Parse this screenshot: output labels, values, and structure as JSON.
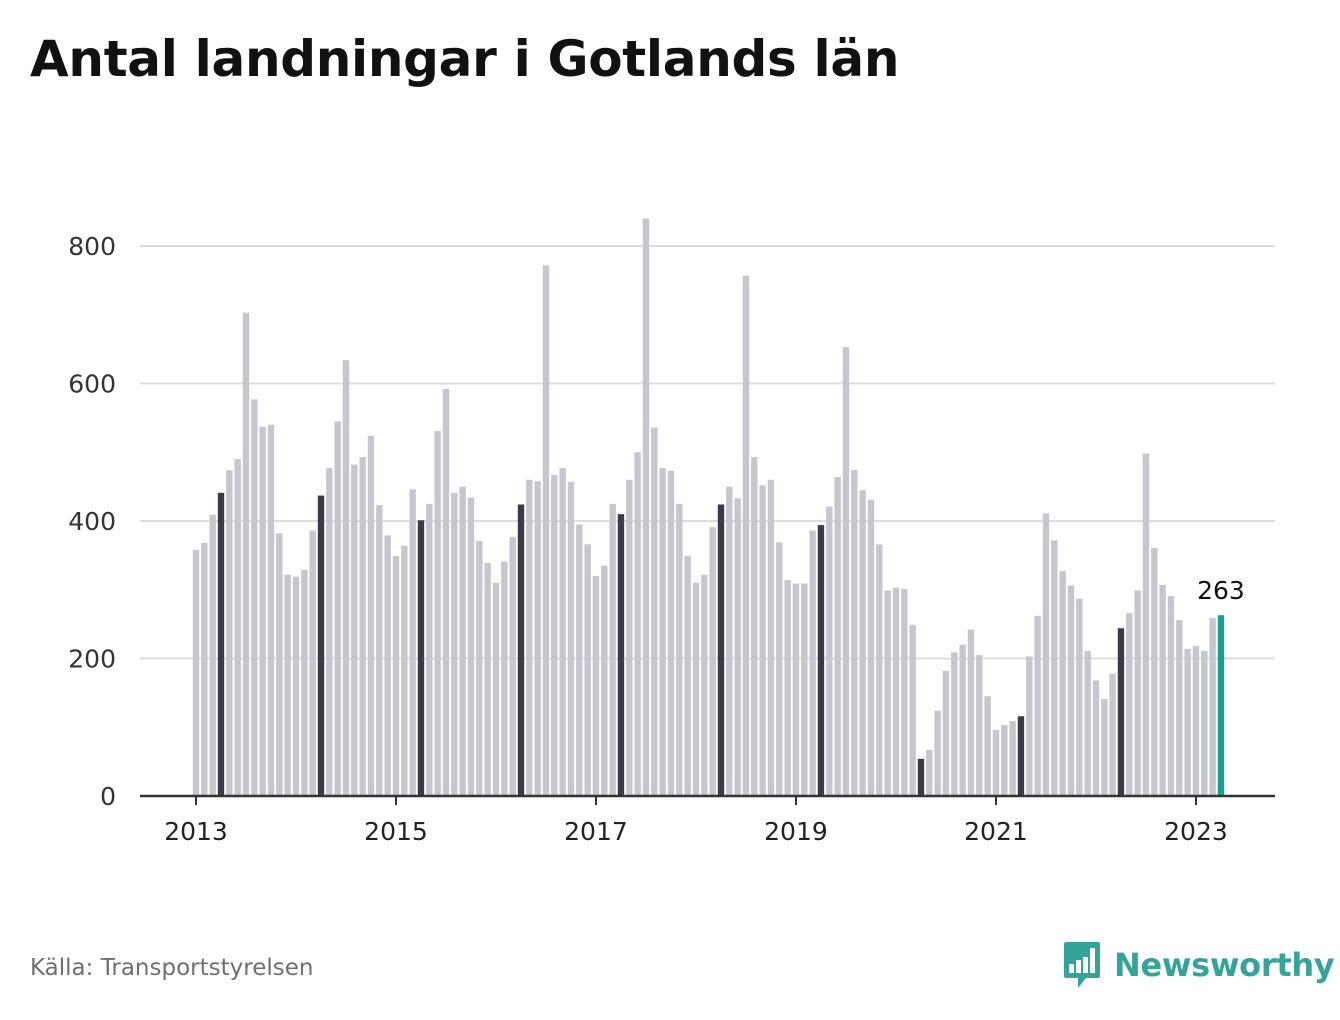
{
  "title": "Antal landningar i Gotlands län",
  "source": "Källa: Transportstyrelsen",
  "brand": "Newsworthy",
  "colors": {
    "bar": "#c6c6ce",
    "highlight": "#3b3a48",
    "latest": "#1a9e91",
    "grid": "#dddddd",
    "axis": "#333333",
    "brand": "#35a39a"
  },
  "chart_data": {
    "type": "bar",
    "frequency": "monthly",
    "start": "2013-01",
    "end": "2023-04",
    "ylim": [
      0,
      870
    ],
    "yticks": [
      0,
      200,
      400,
      600,
      800
    ],
    "xticks": [
      "2013",
      "2015",
      "2017",
      "2019",
      "2021",
      "2023"
    ],
    "highlight_month": "April",
    "latest_label": "263",
    "values": [
      358,
      368,
      409,
      441,
      474,
      490,
      703,
      577,
      537,
      540,
      382,
      322,
      319,
      329,
      386,
      437,
      477,
      545,
      634,
      482,
      493,
      524,
      423,
      379,
      349,
      364,
      446,
      401,
      425,
      531,
      592,
      441,
      450,
      434,
      371,
      339,
      310,
      341,
      377,
      424,
      460,
      458,
      772,
      467,
      477,
      457,
      395,
      366,
      320,
      335,
      425,
      410,
      460,
      500,
      840,
      536,
      477,
      473,
      425,
      349,
      310,
      322,
      391,
      424,
      450,
      433,
      757,
      493,
      452,
      460,
      369,
      314,
      309,
      309,
      386,
      394,
      421,
      464,
      653,
      474,
      445,
      431,
      366,
      299,
      303,
      301,
      249,
      54,
      67,
      124,
      182,
      209,
      220,
      242,
      205,
      145,
      96,
      103,
      109,
      116,
      203,
      262,
      411,
      372,
      327,
      306,
      287,
      211,
      168,
      141,
      178,
      244,
      266,
      299,
      498,
      361,
      307,
      291,
      256,
      214,
      218,
      211,
      259,
      263
    ]
  }
}
